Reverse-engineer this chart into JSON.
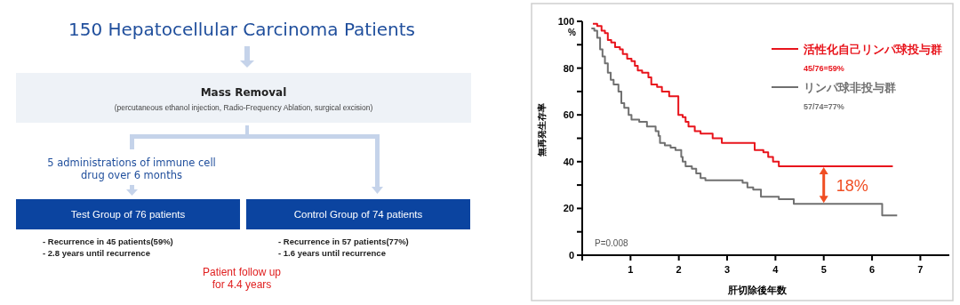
{
  "chart_data": [
    {
      "type": "other",
      "title": "150 Hepatocellular Carcinoma Patients",
      "annotations": [
        "Mass Removal",
        "(percutaneous ethanol injection, Radio-Frequency Ablation, surgical excision)",
        "5 administrations of immune cell drug over 6 months",
        "Test Group of 76 patients",
        "Control Group of 74 patients",
        "- Recurrence in 45 patients(59%)",
        "- 2.8 years until recurrence",
        "- Recurrence in 57 patients(77%)",
        "- 1.6 years until recurrence",
        "Patient follow up for 4.4 years"
      ]
    },
    {
      "type": "step",
      "xlabel": "肝切除後年数",
      "ylabel": "無再発生存率",
      "xlim": [
        0,
        7.6
      ],
      "ylim": [
        0,
        100
      ],
      "xticks": [
        {
          "value": 0,
          "label": null
        },
        1,
        2,
        3,
        4,
        5,
        6,
        7
      ],
      "yticks": [
        0,
        {
          "value": 10,
          "label": null
        },
        20,
        {
          "value": 30,
          "label": null
        },
        40,
        {
          "value": 50,
          "label": null
        },
        60,
        {
          "value": 70,
          "label": null
        },
        80,
        {
          "value": 90,
          "label": null
        },
        100
      ],
      "legend": "top right",
      "grid": false,
      "series": [
        {
          "name": "活性化自己リンパ球投与群",
          "color": "#e8141c",
          "x": [
            0.22,
            0.31,
            0.4,
            0.47,
            0.53,
            0.6,
            0.68,
            0.78,
            0.84,
            0.93,
            1.02,
            1.09,
            1.15,
            1.24,
            1.37,
            1.43,
            1.55,
            1.65,
            1.8,
            1.99,
            2.08,
            2.14,
            2.2,
            2.33,
            2.45,
            2.7,
            2.89,
            3.57,
            3.75,
            3.85,
            3.95,
            4.07,
            6.43
          ],
          "values": [
            99,
            98,
            96,
            95,
            92,
            91,
            89,
            88,
            86,
            84,
            83,
            81,
            79,
            78,
            76,
            73,
            72,
            70,
            68,
            60,
            59,
            57,
            55,
            53,
            52,
            50,
            48,
            45,
            44,
            42,
            40,
            38,
            38
          ]
        },
        {
          "name": "リンパ球非投与群",
          "color": "#707070",
          "x": [
            0.19,
            0.25,
            0.31,
            0.37,
            0.42,
            0.47,
            0.53,
            0.59,
            0.65,
            0.75,
            0.81,
            0.87,
            0.96,
            1.02,
            1.18,
            1.34,
            1.52,
            1.58,
            1.61,
            1.71,
            1.83,
            1.93,
            2.05,
            2.08,
            2.14,
            2.27,
            2.36,
            2.45,
            2.55,
            3.32,
            3.42,
            3.54,
            3.7,
            4.07,
            4.38,
            6.21,
            6.52
          ],
          "values": [
            97,
            96,
            93,
            88,
            85,
            82,
            78,
            75,
            73,
            70,
            65,
            63,
            60,
            58,
            57,
            55,
            53,
            51,
            48,
            47,
            46,
            45,
            42,
            40,
            38,
            37,
            35,
            33,
            32,
            31,
            29,
            28,
            25,
            24,
            22,
            17,
            17
          ]
        }
      ],
      "annotations": [
        "%",
        "45/76=59%",
        "57/74=77%",
        "P=0.008",
        "18%"
      ]
    }
  ]
}
